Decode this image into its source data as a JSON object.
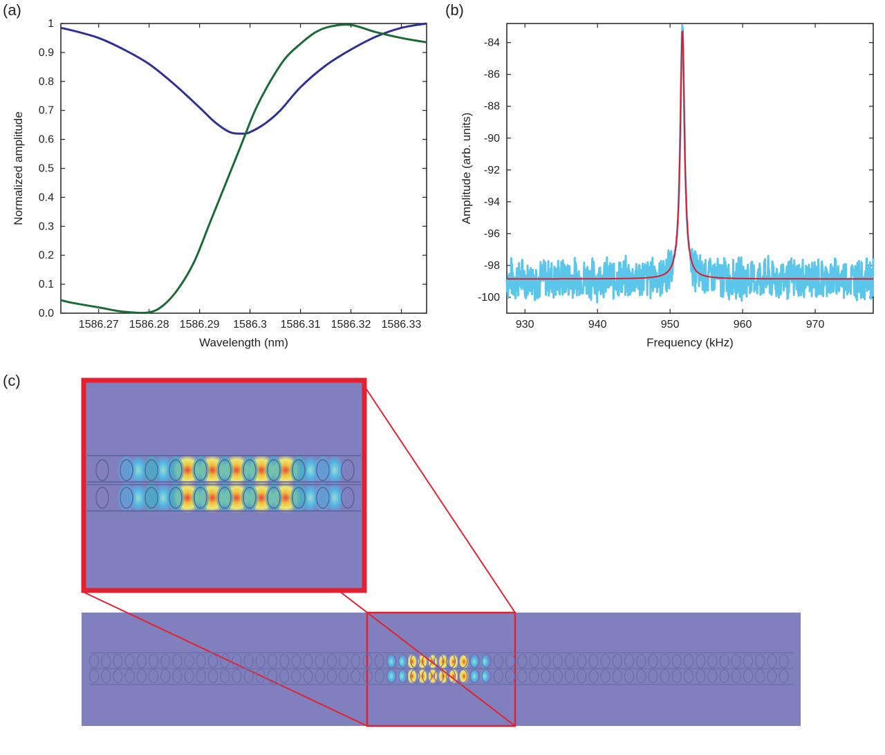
{
  "panels": {
    "a": "(a)",
    "b": "(b)",
    "c": "(c)"
  },
  "colors": {
    "blue_curve": "#2e3192",
    "green_curve": "#1b6a35",
    "measured": "#5bc6ea",
    "fit": "#e0182d",
    "background_field": "#7f80bd",
    "zoom_frame": "#e5202e"
  },
  "chart_data": [
    {
      "type": "line",
      "panel": "(a)",
      "xlabel": "Wavelength (nm)",
      "ylabel": "Normalized amplitude",
      "xlim": [
        1586.2625,
        1586.335
      ],
      "ylim": [
        0,
        1
      ],
      "xticks": [
        1586.27,
        1586.28,
        1586.29,
        1586.3,
        1586.31,
        1586.32,
        1586.33
      ],
      "xtick_labels": [
        "1586.27",
        "1586.28",
        "1586.29",
        "1586.3",
        "1586.31",
        "1586.32",
        "1586.33"
      ],
      "yticks": [
        0,
        0.1,
        0.2,
        0.3,
        0.4,
        0.5,
        0.6,
        0.7,
        0.8,
        0.9,
        1
      ],
      "ytick_labels": [
        "0.0",
        "0.1",
        "0.2",
        "0.3",
        "0.4",
        "0.5",
        "0.6",
        "0.7",
        "0.8",
        "0.9",
        "1"
      ],
      "series": [
        {
          "name": "blue",
          "x": [
            1586.2625,
            1586.265,
            1586.27,
            1586.275,
            1586.28,
            1586.285,
            1586.29,
            1586.293,
            1586.296,
            1586.2985,
            1586.3,
            1586.303,
            1586.306,
            1586.31,
            1586.315,
            1586.32,
            1586.325,
            1586.33,
            1586.335
          ],
          "y": [
            0.985,
            0.975,
            0.95,
            0.91,
            0.86,
            0.79,
            0.71,
            0.66,
            0.625,
            0.62,
            0.625,
            0.655,
            0.7,
            0.78,
            0.855,
            0.91,
            0.955,
            0.985,
            1.0
          ]
        },
        {
          "name": "green",
          "x": [
            1586.2625,
            1586.265,
            1586.27,
            1586.275,
            1586.28,
            1586.283,
            1586.286,
            1586.289,
            1586.292,
            1586.295,
            1586.298,
            1586.301,
            1586.304,
            1586.307,
            1586.31,
            1586.313,
            1586.316,
            1586.32,
            1586.325,
            1586.33,
            1586.335
          ],
          "y": [
            0.045,
            0.035,
            0.02,
            0.005,
            0.003,
            0.03,
            0.09,
            0.18,
            0.31,
            0.44,
            0.57,
            0.7,
            0.8,
            0.88,
            0.93,
            0.97,
            0.99,
            0.995,
            0.97,
            0.95,
            0.935
          ]
        }
      ]
    },
    {
      "type": "line",
      "panel": "(b)",
      "xlabel": "Frequency (kHz)",
      "ylabel": "Amplitude (arb. units)",
      "xlim": [
        927.5,
        978
      ],
      "ylim": [
        -101,
        -82.8
      ],
      "xticks": [
        930,
        940,
        950,
        960,
        970
      ],
      "xtick_labels": [
        "930",
        "940",
        "950",
        "960",
        "970"
      ],
      "yticks": [
        -100,
        -98,
        -96,
        -94,
        -92,
        -90,
        -88,
        -86,
        -84
      ],
      "ytick_labels": [
        "-100",
        "-98",
        "-96",
        "-94",
        "-92",
        "-90",
        "-88",
        "-86",
        "-84"
      ],
      "series": [
        {
          "name": "measured",
          "style": "noisy",
          "baseline": -98.8,
          "noise_amplitude": 1.5,
          "peak_x": 951.7,
          "peak_y": -83.1
        },
        {
          "name": "Lorentzian fit",
          "style": "lorentzian",
          "baseline": -98.85,
          "peak_x": 951.7,
          "peak_y": -83.1,
          "half_width": 0.35
        }
      ]
    }
  ]
}
